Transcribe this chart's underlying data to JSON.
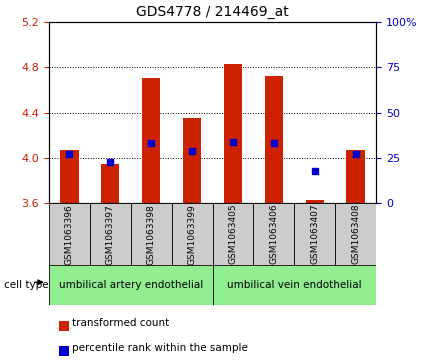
{
  "title": "GDS4778 / 214469_at",
  "samples": [
    "GSM1063396",
    "GSM1063397",
    "GSM1063398",
    "GSM1063399",
    "GSM1063405",
    "GSM1063406",
    "GSM1063407",
    "GSM1063408"
  ],
  "transformed_count": [
    4.07,
    3.95,
    4.7,
    4.35,
    4.83,
    4.72,
    3.63,
    4.07
  ],
  "percentile_rank": [
    27,
    23,
    33,
    29,
    34,
    33,
    18,
    27
  ],
  "ylim_left": [
    3.6,
    5.2
  ],
  "ylim_right": [
    0,
    100
  ],
  "yticks_left": [
    3.6,
    4.0,
    4.4,
    4.8,
    5.2
  ],
  "yticks_right": [
    0,
    25,
    50,
    75,
    100
  ],
  "groups": [
    {
      "label": "umbilical artery endothelial",
      "samples": [
        0,
        1,
        2,
        3
      ],
      "color": "#90EE90"
    },
    {
      "label": "umbilical vein endothelial",
      "samples": [
        4,
        5,
        6,
        7
      ],
      "color": "#90EE90"
    }
  ],
  "bar_color": "#CC2200",
  "dot_color": "#0000CC",
  "bar_width": 0.45,
  "tick_label_color_left": "#CC2200",
  "tick_label_color_right": "#0000CC",
  "sample_bg_color": "#CCCCCC",
  "cell_type_label": "cell type",
  "legend_bar_label": "transformed count",
  "legend_dot_label": "percentile rank within the sample"
}
